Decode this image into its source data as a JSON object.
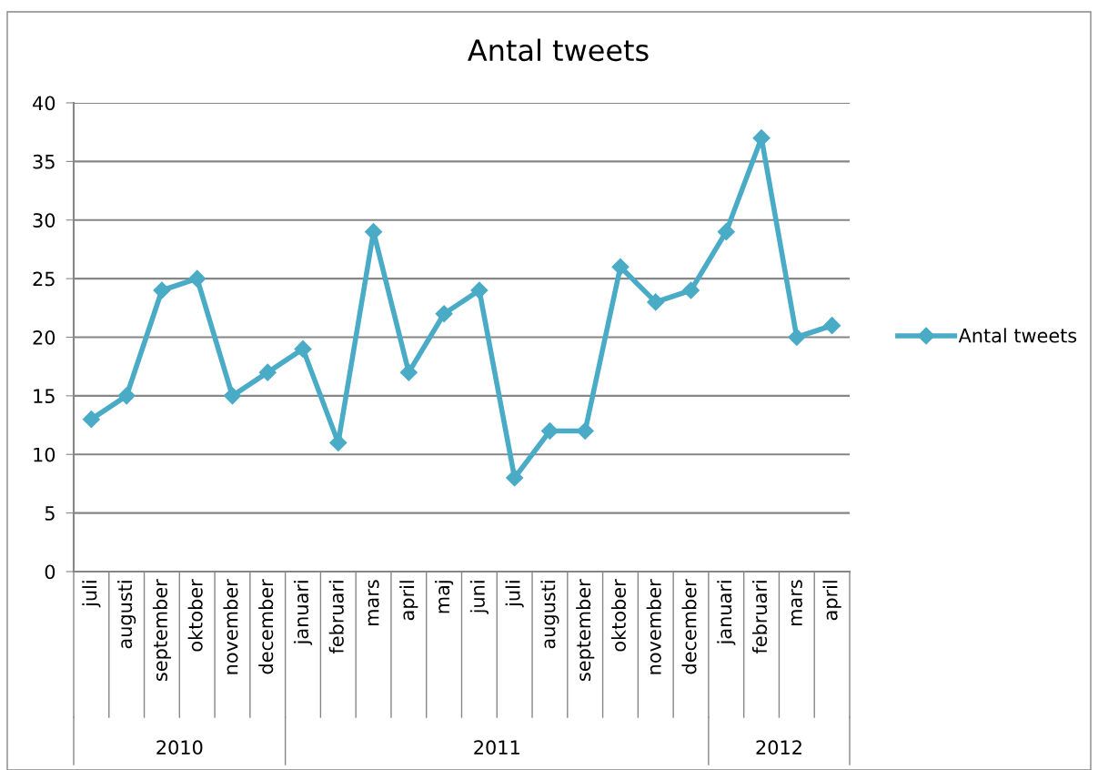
{
  "chart_data": {
    "type": "line",
    "title": "Antal tweets",
    "categories": [
      "juli",
      "augusti",
      "september",
      "oktober",
      "november",
      "december",
      "januari",
      "februari",
      "mars",
      "april",
      "maj",
      "juni",
      "juli",
      "augusti",
      "september",
      "oktober",
      "november",
      "december",
      "januari",
      "februari",
      "mars",
      "april"
    ],
    "series": [
      {
        "name": "Antal tweets",
        "color": "#4aabc6",
        "values": [
          13,
          15,
          24,
          25,
          15,
          17,
          19,
          11,
          29,
          17,
          22,
          24,
          8,
          12,
          12,
          26,
          23,
          24,
          29,
          37,
          20,
          21
        ]
      }
    ],
    "annotations": [
      "2010",
      "2011",
      "2012"
    ],
    "ylim": [
      0,
      40
    ],
    "yticks": [
      0,
      5,
      10,
      15,
      20,
      25,
      30,
      35,
      40
    ],
    "grid": "y",
    "legend": "right",
    "marker": "diamond",
    "line_style": "solid"
  }
}
